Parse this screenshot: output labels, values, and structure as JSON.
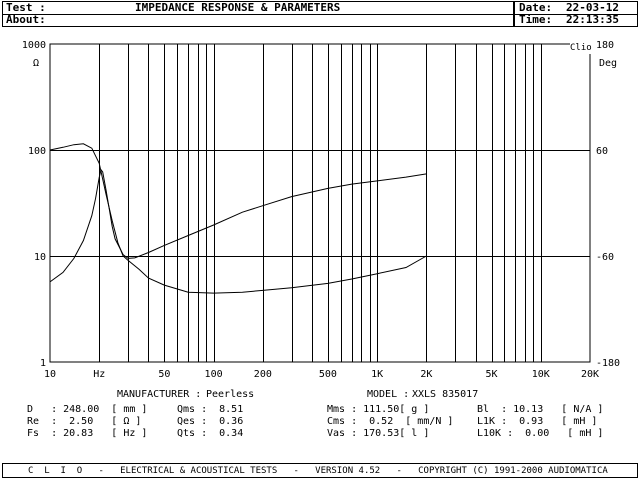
{
  "header": {
    "test_label": "Test :",
    "about_label": "About:",
    "title": "IMPEDANCE RESPONSE & PARAMETERS",
    "date_label": "Date:",
    "date_value": "22-03-12",
    "time_label": "Time:",
    "time_value": "22:13:35"
  },
  "chart_data": {
    "type": "line",
    "x_scale": "log",
    "xlim": [
      10,
      20000
    ],
    "y_left_scale": "log",
    "ylim_left": [
      1,
      1000
    ],
    "ylim_right": [
      -180,
      180
    ],
    "y_left_unit": "Ω",
    "y_right_unit": "Deg",
    "corner_label": "Clio",
    "grid": true,
    "x_ticks": [
      {
        "v": 10,
        "label": "10"
      },
      {
        "v": 20,
        "label": "Hz"
      },
      {
        "v": 50,
        "label": "50"
      },
      {
        "v": 100,
        "label": "100"
      },
      {
        "v": 200,
        "label": "200"
      },
      {
        "v": 500,
        "label": "500"
      },
      {
        "v": 1000,
        "label": "1K"
      },
      {
        "v": 2000,
        "label": "2K"
      },
      {
        "v": 5000,
        "label": "5K"
      },
      {
        "v": 10000,
        "label": "10K"
      },
      {
        "v": 20000,
        "label": "20K"
      }
    ],
    "y_left_ticks": [
      {
        "v": 1,
        "label": "1"
      },
      {
        "v": 10,
        "label": "10"
      },
      {
        "v": 100,
        "label": "100"
      },
      {
        "v": 1000,
        "label": "1000"
      }
    ],
    "y_right_ticks": [
      {
        "v": -180,
        "label": "-180"
      },
      {
        "v": -60,
        "label": "-60"
      },
      {
        "v": 60,
        "label": "60"
      },
      {
        "v": 180,
        "label": "180"
      }
    ],
    "series": [
      {
        "kind": "impedance_ohm",
        "points": [
          [
            10,
            5.7
          ],
          [
            12,
            7
          ],
          [
            14,
            9.5
          ],
          [
            16,
            14
          ],
          [
            18,
            24
          ],
          [
            19,
            35
          ],
          [
            20,
            55
          ],
          [
            20.5,
            65
          ],
          [
            21,
            62
          ],
          [
            22,
            42
          ],
          [
            23,
            28
          ],
          [
            24,
            19
          ],
          [
            25,
            14.5
          ],
          [
            27,
            11.5
          ],
          [
            28,
            10.3
          ],
          [
            30,
            9.5
          ],
          [
            33,
            9.6
          ],
          [
            40,
            10.8
          ],
          [
            50,
            12.6
          ],
          [
            70,
            15.6
          ],
          [
            100,
            19.6
          ],
          [
            150,
            25.9
          ],
          [
            200,
            29.8
          ],
          [
            300,
            36.3
          ],
          [
            500,
            43.4
          ],
          [
            700,
            47.7
          ],
          [
            1000,
            51.1
          ],
          [
            1500,
            55.5
          ],
          [
            2000,
            59.5
          ]
        ]
      },
      {
        "kind": "phase_deg",
        "points": [
          [
            10,
            60
          ],
          [
            12,
            63
          ],
          [
            14,
            66
          ],
          [
            16,
            67
          ],
          [
            18,
            62
          ],
          [
            20,
            45
          ],
          [
            22,
            10
          ],
          [
            24,
            -20
          ],
          [
            26,
            -45
          ],
          [
            28,
            -60
          ],
          [
            30,
            -65
          ],
          [
            35,
            -75
          ],
          [
            40,
            -85
          ],
          [
            50,
            -93
          ],
          [
            70,
            -101
          ],
          [
            100,
            -102
          ],
          [
            150,
            -101
          ],
          [
            200,
            -99
          ],
          [
            300,
            -96
          ],
          [
            500,
            -91
          ],
          [
            700,
            -86
          ],
          [
            1000,
            -80
          ],
          [
            1500,
            -73
          ],
          [
            2000,
            -60
          ]
        ]
      }
    ]
  },
  "params": {
    "manufacturer_label": "MANUFACTURER :",
    "manufacturer_value": "Peerless",
    "model_label": "MODEL :",
    "model_value": "XXLS 835017",
    "rows": [
      [
        "D   : 248.00  [ mm ]",
        "Qms :  8.51",
        "Mms : 111.50[ g ]",
        "Bl  : 10.13   [ N/A ]"
      ],
      [
        "Re  :  2.50   [ Ω ]",
        "Qes :  0.36",
        "Cms :  0.52  [ mm/N ]",
        "L1K :  0.93   [ mH ]"
      ],
      [
        "Fs  : 20.83   [ Hz ]",
        "Qts :  0.34",
        "Vas : 170.53[ l ]",
        "L10K :  0.00   [ mH ]"
      ]
    ]
  },
  "footer": {
    "text": "C  L  I  O   -   ELECTRICAL & ACOUSTICAL TESTS   -   VERSION 4.52   -   COPYRIGHT (C) 1991-2000 AUDIOMATICA"
  }
}
